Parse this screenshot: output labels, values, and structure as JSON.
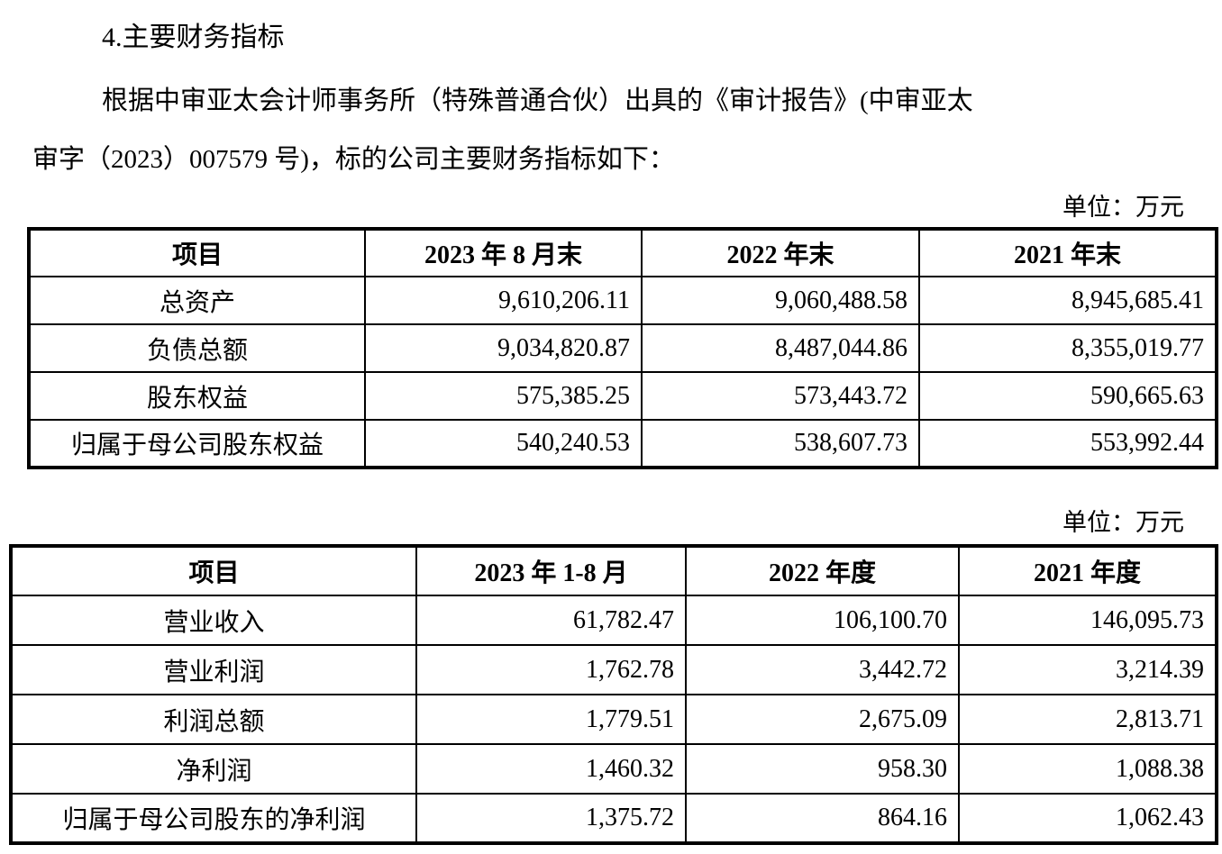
{
  "page": {
    "heading": "4.主要财务指标",
    "paragraph_line1": "根据中审亚太会计师事务所（特殊普通合伙）出具的《审计报告》(中审亚太",
    "paragraph_line2": "审字（2023）007579 号)，标的公司主要财务指标如下：",
    "unit_label_1": "单位：万元",
    "unit_label_2": "单位：万元"
  },
  "table1": {
    "headers": [
      "项目",
      "2023 年 8 月末",
      "2022 年末",
      "2021 年末"
    ],
    "rows": [
      [
        "总资产",
        "9,610,206.11",
        "9,060,488.58",
        "8,945,685.41"
      ],
      [
        "负债总额",
        "9,034,820.87",
        "8,487,044.86",
        "8,355,019.77"
      ],
      [
        "股东权益",
        "575,385.25",
        "573,443.72",
        "590,665.63"
      ],
      [
        "归属于母公司股东权益",
        "540,240.53",
        "538,607.73",
        "553,992.44"
      ]
    ]
  },
  "table2": {
    "headers": [
      "项目",
      "2023 年 1-8 月",
      "2022 年度",
      "2021 年度"
    ],
    "rows": [
      [
        "营业收入",
        "61,782.47",
        "106,100.70",
        "146,095.73"
      ],
      [
        "营业利润",
        "1,762.78",
        "3,442.72",
        "3,214.39"
      ],
      [
        "利润总额",
        "1,779.51",
        "2,675.09",
        "2,813.71"
      ],
      [
        "净利润",
        "1,460.32",
        "958.30",
        "1,088.38"
      ],
      [
        "归属于母公司股东的净利润",
        "1,375.72",
        "864.16",
        "1,062.43"
      ]
    ]
  }
}
